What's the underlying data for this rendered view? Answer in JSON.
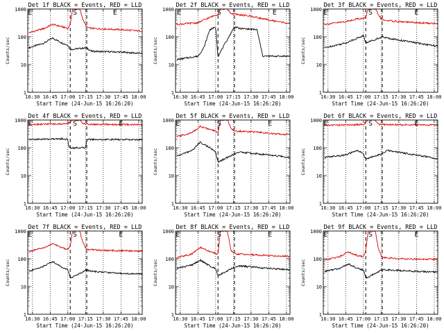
{
  "chart_data": [
    {
      "type": "line",
      "title": "Det 1f BLACK = Events, RED = LLD",
      "ylabel": "Counts/sec",
      "xlabel": "Start Time (24-Jun-15 16:26:20)",
      "x_ticks": [
        "16:30",
        "16:45",
        "17:00",
        "17:15",
        "17:30",
        "17:45",
        "18:00"
      ],
      "xlim": [
        "16:26",
        "18:03"
      ],
      "ylim": [
        1,
        1000
      ],
      "yscale": "log",
      "y_ticks": [
        "1",
        "10",
        "100",
        "1000"
      ],
      "markers": [
        {
          "label": "E",
          "x": "16:28"
        },
        {
          "label": "S",
          "x": "17:06"
        },
        {
          "label": "E",
          "x": "17:40"
        }
      ],
      "series": [
        {
          "name": "Events",
          "color": "#000000",
          "x": [
            "16:27",
            "16:40",
            "16:47",
            "16:55",
            "17:00",
            "17:02",
            "17:16",
            "17:20",
            "17:45",
            "18:03"
          ],
          "values": [
            40,
            60,
            90,
            60,
            50,
            35,
            40,
            30,
            28,
            25
          ]
        },
        {
          "name": "LLD",
          "color": "#dd0000",
          "x": [
            "16:27",
            "16:40",
            "16:47",
            "16:55",
            "17:00",
            "17:02",
            "17:04",
            "17:10",
            "17:13",
            "17:16",
            "17:20",
            "17:45",
            "18:03"
          ],
          "values": [
            140,
            200,
            280,
            230,
            200,
            280,
            1000,
            1000,
            400,
            220,
            200,
            180,
            160
          ]
        }
      ]
    },
    {
      "type": "line",
      "title": "Det 2f BLACK = Events, RED = LLD",
      "ylabel": "Counts/sec",
      "xlabel": "Start Time (24-Jun-15 16:26:20)",
      "x_ticks": [
        "16:30",
        "16:45",
        "17:00",
        "17:15",
        "17:30",
        "17:45",
        "18:00"
      ],
      "xlim": [
        "16:26",
        "18:03"
      ],
      "ylim": [
        1,
        1000
      ],
      "yscale": "log",
      "y_ticks": [
        "1",
        "10",
        "100",
        "1000"
      ],
      "markers": [
        {
          "label": "E",
          "x": "16:29"
        },
        {
          "label": "S",
          "x": "17:03"
        },
        {
          "label": "E",
          "x": "17:50"
        }
      ],
      "series": [
        {
          "name": "Events",
          "color": "#000000",
          "x": [
            "16:27",
            "16:45",
            "16:50",
            "16:55",
            "17:00",
            "17:02",
            "17:16",
            "17:20",
            "17:35",
            "17:40",
            "18:03"
          ],
          "values": [
            15,
            20,
            40,
            180,
            220,
            20,
            230,
            200,
            180,
            20,
            20
          ]
        },
        {
          "name": "LLD",
          "color": "#dd0000",
          "x": [
            "16:27",
            "16:45",
            "16:55",
            "17:00",
            "17:02",
            "17:04",
            "17:10",
            "17:13",
            "17:16",
            "17:30",
            "17:45",
            "18:03"
          ],
          "values": [
            280,
            320,
            500,
            600,
            650,
            1000,
            1000,
            700,
            650,
            550,
            400,
            300
          ]
        }
      ]
    },
    {
      "type": "line",
      "title": "Det 3f BLACK = Events, RED = LLD",
      "ylabel": "Counts/sec",
      "xlabel": "Start Time (24-Jun-15 16:26:20)",
      "x_ticks": [
        "16:30",
        "16:45",
        "17:00",
        "17:15",
        "17:30",
        "17:45",
        "18:00"
      ],
      "xlim": [
        "16:26",
        "18:03"
      ],
      "ylim": [
        1,
        1000
      ],
      "yscale": "log",
      "y_ticks": [
        "1",
        "10",
        "100",
        "1000"
      ],
      "markers": [
        {
          "label": "E",
          "x": "16:28"
        },
        {
          "label": "S",
          "x": "17:06"
        },
        {
          "label": "E",
          "x": "17:45"
        }
      ],
      "series": [
        {
          "name": "Events",
          "color": "#000000",
          "x": [
            "16:27",
            "16:45",
            "16:55",
            "17:00",
            "17:02",
            "17:16",
            "17:20",
            "17:45",
            "18:03"
          ],
          "values": [
            40,
            60,
            90,
            110,
            60,
            100,
            90,
            60,
            45
          ]
        },
        {
          "name": "LLD",
          "color": "#dd0000",
          "x": [
            "16:27",
            "16:45",
            "16:55",
            "17:00",
            "17:02",
            "17:04",
            "17:10",
            "17:13",
            "17:16",
            "17:30",
            "17:45",
            "18:03"
          ],
          "values": [
            280,
            350,
            450,
            450,
            500,
            1000,
            1000,
            600,
            400,
            350,
            320,
            300
          ]
        }
      ]
    },
    {
      "type": "line",
      "title": "Det 4f BLACK = Events, RED = LLD",
      "ylabel": "Counts/sec",
      "xlabel": "Start Time (24-Jun-15 16:26:20)",
      "x_ticks": [
        "16:30",
        "16:45",
        "17:00",
        "17:15",
        "17:30",
        "17:45",
        "18:00"
      ],
      "xlim": [
        "16:26",
        "18:03"
      ],
      "ylim": [
        1,
        1000
      ],
      "yscale": "log",
      "y_ticks": [
        "1",
        "10",
        "100",
        "1000"
      ],
      "markers": [
        {
          "label": "E",
          "x": "16:28"
        },
        {
          "label": "S",
          "x": "17:06"
        },
        {
          "label": "E",
          "x": "17:45"
        }
      ],
      "series": [
        {
          "name": "Events",
          "color": "#000000",
          "x": [
            "16:27",
            "16:55",
            "17:00",
            "17:01",
            "17:15",
            "17:16",
            "18:03"
          ],
          "values": [
            200,
            210,
            200,
            100,
            100,
            200,
            195
          ]
        },
        {
          "name": "LLD",
          "color": "#dd0000",
          "x": [
            "16:27",
            "16:55",
            "17:00",
            "17:04",
            "17:10",
            "17:13",
            "17:16",
            "18:03"
          ],
          "values": [
            700,
            720,
            750,
            1000,
            1000,
            750,
            700,
            680
          ]
        }
      ]
    },
    {
      "type": "line",
      "title": "Det 5f BLACK = Events, RED = LLD",
      "ylabel": "Counts/sec",
      "xlabel": "Start Time (24-Jun-15 16:26:20)",
      "x_ticks": [
        "16:30",
        "16:45",
        "17:00",
        "17:15",
        "17:30",
        "17:45",
        "18:00"
      ],
      "xlim": [
        "16:26",
        "18:03"
      ],
      "ylim": [
        1,
        1000
      ],
      "yscale": "log",
      "y_ticks": [
        "1",
        "10",
        "100",
        "1000"
      ],
      "markers": [
        {
          "label": "E",
          "x": "16:28"
        },
        {
          "label": "S",
          "x": "17:03"
        },
        {
          "label": "E",
          "x": "17:46"
        }
      ],
      "series": [
        {
          "name": "Events",
          "color": "#000000",
          "x": [
            "16:27",
            "16:40",
            "16:47",
            "16:55",
            "17:00",
            "17:02",
            "17:16",
            "17:20",
            "17:45",
            "18:03"
          ],
          "values": [
            50,
            80,
            160,
            100,
            70,
            30,
            60,
            70,
            55,
            45
          ]
        },
        {
          "name": "LLD",
          "color": "#dd0000",
          "x": [
            "16:27",
            "16:40",
            "16:47",
            "16:55",
            "17:00",
            "17:02",
            "17:04",
            "17:10",
            "17:13",
            "17:16",
            "17:30",
            "17:45",
            "18:03"
          ],
          "values": [
            250,
            350,
            600,
            450,
            400,
            350,
            1000,
            1000,
            500,
            400,
            380,
            330,
            300
          ]
        }
      ]
    },
    {
      "type": "line",
      "title": "Det 6f BLACK = Events, RED = LLD",
      "ylabel": "Counts/sec",
      "xlabel": "Start Time (24-Jun-15 16:26:20)",
      "x_ticks": [
        "16:30",
        "16:45",
        "17:00",
        "17:15",
        "17:30",
        "17:45",
        "18:00"
      ],
      "xlim": [
        "16:26",
        "18:03"
      ],
      "ylim": [
        1,
        1000
      ],
      "yscale": "log",
      "y_ticks": [
        "1",
        "10",
        "100",
        "1000"
      ],
      "markers": [
        {
          "label": "E",
          "x": "16:28"
        },
        {
          "label": "S",
          "x": "17:06"
        },
        {
          "label": "E",
          "x": "17:45"
        }
      ],
      "series": [
        {
          "name": "Events",
          "color": "#000000",
          "x": [
            "16:27",
            "16:45",
            "16:55",
            "17:00",
            "17:02",
            "17:16",
            "17:20",
            "17:45",
            "18:03"
          ],
          "values": [
            45,
            55,
            80,
            60,
            40,
            60,
            80,
            55,
            40
          ]
        },
        {
          "name": "LLD",
          "color": "#dd0000",
          "x": [
            "16:27",
            "16:55",
            "17:00",
            "17:04",
            "17:10",
            "17:13",
            "17:16",
            "18:03"
          ],
          "values": [
            650,
            680,
            700,
            1000,
            1000,
            700,
            680,
            660
          ]
        }
      ]
    },
    {
      "type": "line",
      "title": "Det 7f BLACK = Events, RED = LLD",
      "ylabel": "Counts/sec",
      "xlabel": "Start Time (24-Jun-15 16:26:20)",
      "x_ticks": [
        "16:30",
        "16:45",
        "17:00",
        "17:15",
        "17:30",
        "17:45",
        "18:00"
      ],
      "xlim": [
        "16:26",
        "18:03"
      ],
      "ylim": [
        1,
        1000
      ],
      "yscale": "log",
      "y_ticks": [
        "1",
        "10",
        "100",
        "1000"
      ],
      "markers": [
        {
          "label": "E",
          "x": "16:28"
        },
        {
          "label": "S",
          "x": "17:06"
        },
        {
          "label": "E",
          "x": "17:45"
        }
      ],
      "series": [
        {
          "name": "Events",
          "color": "#000000",
          "x": [
            "16:27",
            "16:40",
            "16:47",
            "16:55",
            "17:00",
            "17:02",
            "17:16",
            "17:20",
            "17:45",
            "18:03"
          ],
          "values": [
            35,
            55,
            80,
            50,
            40,
            20,
            40,
            35,
            30,
            28
          ]
        },
        {
          "name": "LLD",
          "color": "#dd0000",
          "x": [
            "16:27",
            "16:40",
            "16:47",
            "16:55",
            "17:00",
            "17:02",
            "17:04",
            "17:10",
            "17:13",
            "17:16",
            "17:30",
            "18:03"
          ],
          "values": [
            180,
            250,
            350,
            250,
            220,
            300,
            1000,
            1000,
            350,
            220,
            200,
            190
          ]
        }
      ]
    },
    {
      "type": "line",
      "title": "Det 8f BLACK = Events, RED = LLD",
      "ylabel": "Counts/sec",
      "xlabel": "Start Time (24-Jun-15 16:26:20)",
      "x_ticks": [
        "16:30",
        "16:45",
        "17:00",
        "17:15",
        "17:30",
        "17:45",
        "18:00"
      ],
      "xlim": [
        "16:26",
        "18:03"
      ],
      "ylim": [
        1,
        1000
      ],
      "yscale": "log",
      "y_ticks": [
        "1",
        "10",
        "100",
        "1000"
      ],
      "markers": [
        {
          "label": "E",
          "x": "16:28"
        },
        {
          "label": "S",
          "x": "17:03"
        },
        {
          "label": "E",
          "x": "17:46"
        }
      ],
      "series": [
        {
          "name": "Events",
          "color": "#000000",
          "x": [
            "16:27",
            "16:40",
            "16:47",
            "16:55",
            "17:00",
            "17:02",
            "17:16",
            "17:20",
            "17:45",
            "18:03"
          ],
          "values": [
            45,
            60,
            90,
            55,
            45,
            25,
            50,
            55,
            45,
            40
          ]
        },
        {
          "name": "LLD",
          "color": "#dd0000",
          "x": [
            "16:27",
            "16:40",
            "16:47",
            "16:55",
            "17:00",
            "17:02",
            "17:04",
            "17:10",
            "17:13",
            "17:16",
            "17:30",
            "18:03"
          ],
          "values": [
            110,
            150,
            260,
            180,
            160,
            140,
            1000,
            1000,
            200,
            150,
            140,
            120
          ]
        }
      ]
    },
    {
      "type": "line",
      "title": "Det 9f BLACK = Events, RED = LLD",
      "ylabel": "Counts/sec",
      "xlabel": "Start Time (24-Jun-15 16:26:20)",
      "x_ticks": [
        "16:30",
        "16:45",
        "17:00",
        "17:15",
        "17:30",
        "17:45",
        "18:00"
      ],
      "xlim": [
        "16:26",
        "18:03"
      ],
      "ylim": [
        1,
        1000
      ],
      "yscale": "log",
      "y_ticks": [
        "1",
        "10",
        "100",
        "1000"
      ],
      "markers": [
        {
          "label": "E",
          "x": "16:28"
        },
        {
          "label": "S",
          "x": "17:06"
        },
        {
          "label": "E",
          "x": "17:45"
        }
      ],
      "series": [
        {
          "name": "Events",
          "color": "#000000",
          "x": [
            "16:27",
            "16:40",
            "16:47",
            "16:55",
            "17:00",
            "17:02",
            "17:16",
            "17:20",
            "17:45",
            "18:03"
          ],
          "values": [
            35,
            45,
            65,
            45,
            40,
            20,
            40,
            40,
            35,
            33
          ]
        },
        {
          "name": "LLD",
          "color": "#dd0000",
          "x": [
            "16:27",
            "16:40",
            "16:47",
            "16:55",
            "17:00",
            "17:02",
            "17:04",
            "17:10",
            "17:13",
            "17:16",
            "17:30",
            "18:03"
          ],
          "values": [
            90,
            120,
            180,
            130,
            120,
            200,
            1000,
            1000,
            200,
            110,
            100,
            95
          ]
        }
      ]
    }
  ]
}
